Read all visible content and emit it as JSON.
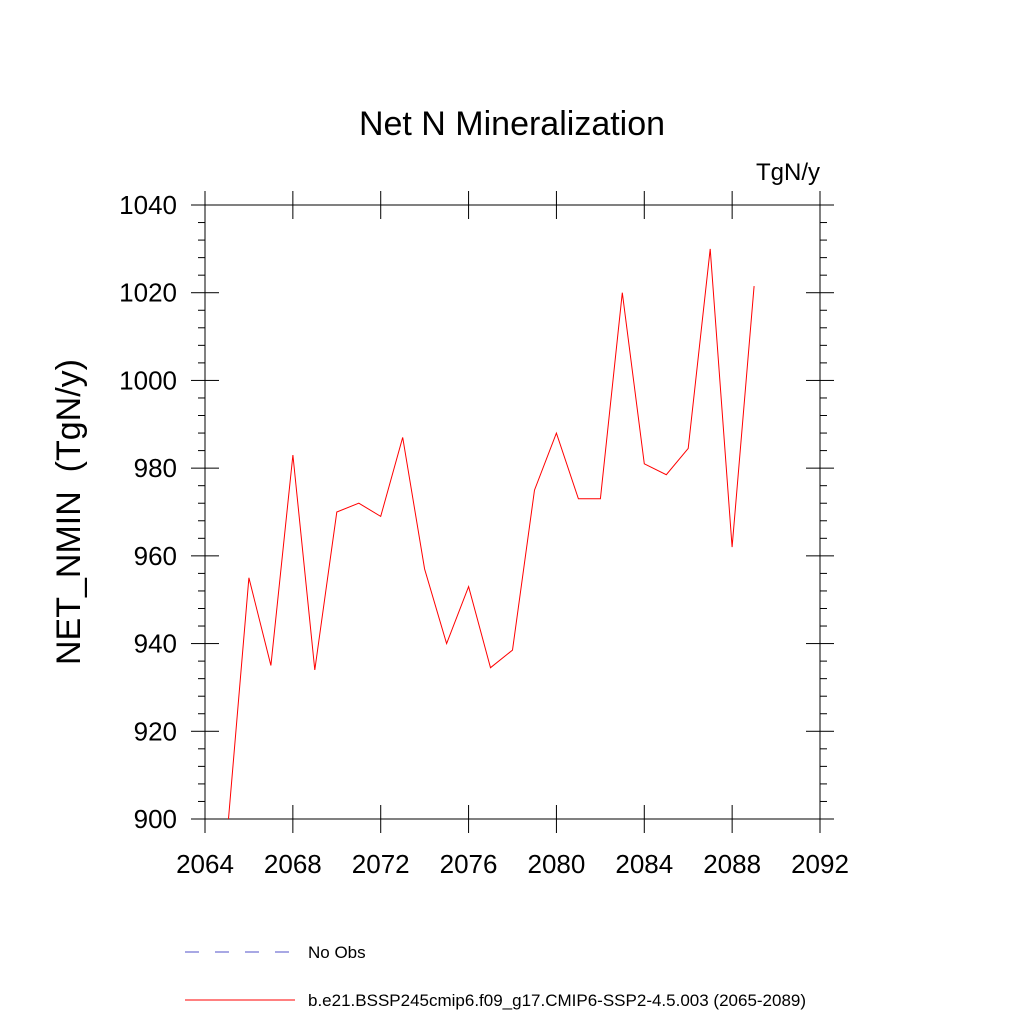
{
  "chart_data": {
    "type": "line",
    "title": "Net N Mineralization",
    "units_label": "TgN/y",
    "ylabel": "NET_NMIN  (TgN/y)",
    "xlabel": "",
    "xlim": [
      2064,
      2092
    ],
    "ylim": [
      900,
      1040
    ],
    "x_ticks": [
      2064,
      2068,
      2072,
      2076,
      2080,
      2084,
      2088,
      2092
    ],
    "y_ticks": [
      900,
      920,
      940,
      960,
      980,
      1000,
      1020,
      1040
    ],
    "x_ticks_labels": [
      "2064",
      "2068",
      "2072",
      "2076",
      "2080",
      "2084",
      "2088",
      "2092"
    ],
    "y_ticks_labels": [
      "900",
      "920",
      "940",
      "960",
      "980",
      "1000",
      "1020",
      "1040"
    ],
    "grid": false,
    "legend_position": "bottom",
    "series": [
      {
        "name": "b.e21.BSSP245cmip6.f09_g17.CMIP6-SSP2-4.5.003 (2065-2089)",
        "color": "#ff0000",
        "style": "solid",
        "x": [
          2065,
          2066,
          2067,
          2068,
          2069,
          2070,
          2071,
          2072,
          2073,
          2074,
          2075,
          2076,
          2077,
          2078,
          2079,
          2080,
          2081,
          2082,
          2083,
          2084,
          2085,
          2086,
          2087,
          2088,
          2089
        ],
        "y": [
          896,
          955,
          935,
          983,
          934,
          970,
          972,
          969,
          987,
          957,
          940,
          953,
          934.5,
          938.5,
          975,
          988,
          973,
          973,
          1020,
          981,
          978.5,
          984.5,
          1030,
          962,
          1021.5
        ]
      }
    ],
    "legend": [
      {
        "label": "No Obs",
        "color": "#5050c8",
        "style": "dashed"
      },
      {
        "label": "b.e21.BSSP245cmip6.f09_g17.CMIP6-SSP2-4.5.003 (2065-2089)",
        "color": "#ff0000",
        "style": "solid"
      }
    ]
  }
}
